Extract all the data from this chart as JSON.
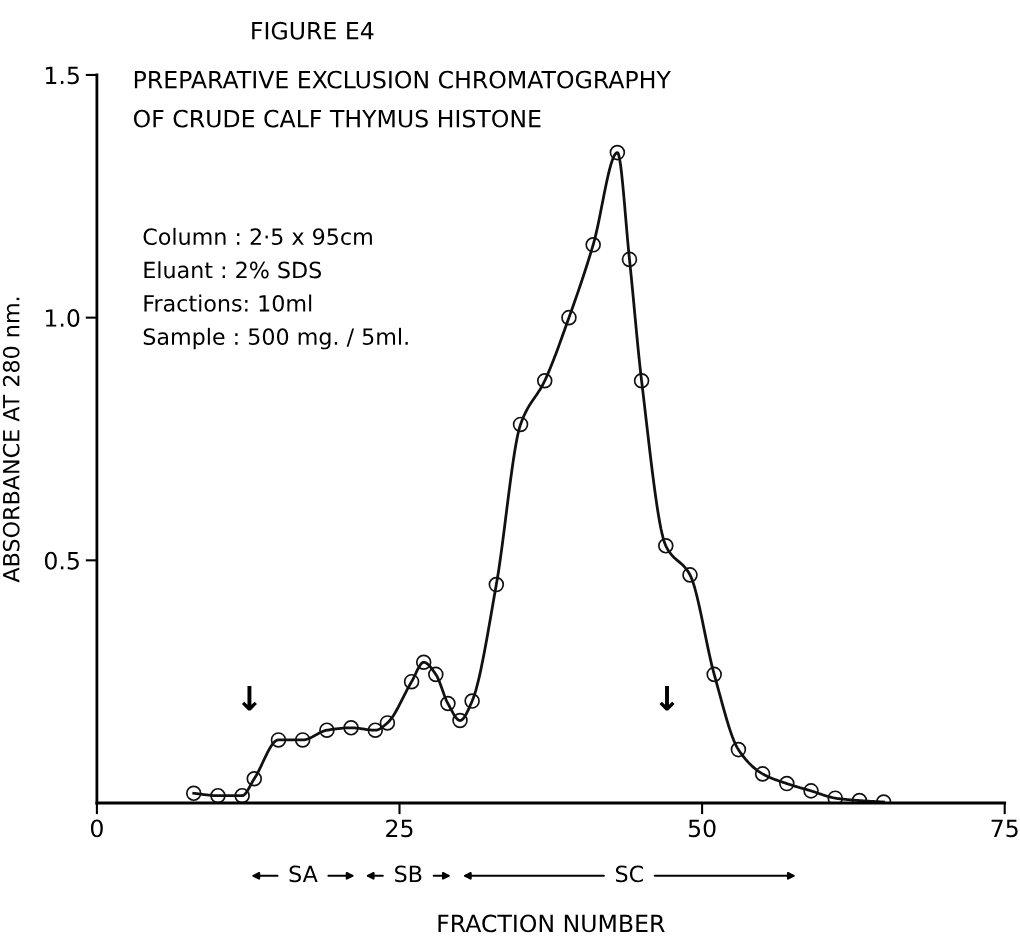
{
  "chart_data": {
    "type": "line",
    "title": "FIGURE E4",
    "subtitle": "PREPARATIVE EXCLUSION CHROMATOGRAPHY\nOF CRUDE CALF THYMUS HISTONE",
    "xlabel": "FRACTION NUMBER",
    "ylabel": "ABSORBANCE AT 280 nm.",
    "x": [
      8,
      10,
      12,
      13,
      15,
      17,
      19,
      21,
      23,
      24,
      26,
      27,
      28,
      29,
      30,
      31,
      33,
      35,
      37,
      39,
      41,
      43,
      44,
      45,
      47,
      49,
      51,
      53,
      55,
      57,
      59,
      61,
      63,
      65
    ],
    "series": [
      {
        "color": "#111111",
        "values": [
          0.02,
          0.015,
          0.015,
          0.05,
          0.13,
          0.13,
          0.15,
          0.155,
          0.15,
          0.165,
          0.25,
          0.29,
          0.265,
          0.205,
          0.17,
          0.21,
          0.45,
          0.78,
          0.87,
          1.0,
          1.15,
          1.34,
          1.12,
          0.87,
          0.53,
          0.47,
          0.265,
          0.11,
          0.06,
          0.04,
          0.025,
          0.01,
          0.005,
          0.002
        ]
      }
    ],
    "marker": "circle",
    "line_style": "solid",
    "grid": false,
    "legend": false,
    "xlim": [
      0,
      75
    ],
    "xticks": [
      0,
      25,
      50,
      75
    ],
    "ylim": [
      0,
      1.5
    ],
    "yticks": [
      0.5,
      {
        "value": 1,
        "label": "1.0"
      },
      1.5
    ],
    "annotations": [
      "Column : 2·5 x 95cm\nEluant : 2% SDS\nFractions: 10ml\nSample : 500 mg. / 5ml.",
      "↓",
      "↓",
      "SA",
      "SB",
      "SC"
    ]
  }
}
